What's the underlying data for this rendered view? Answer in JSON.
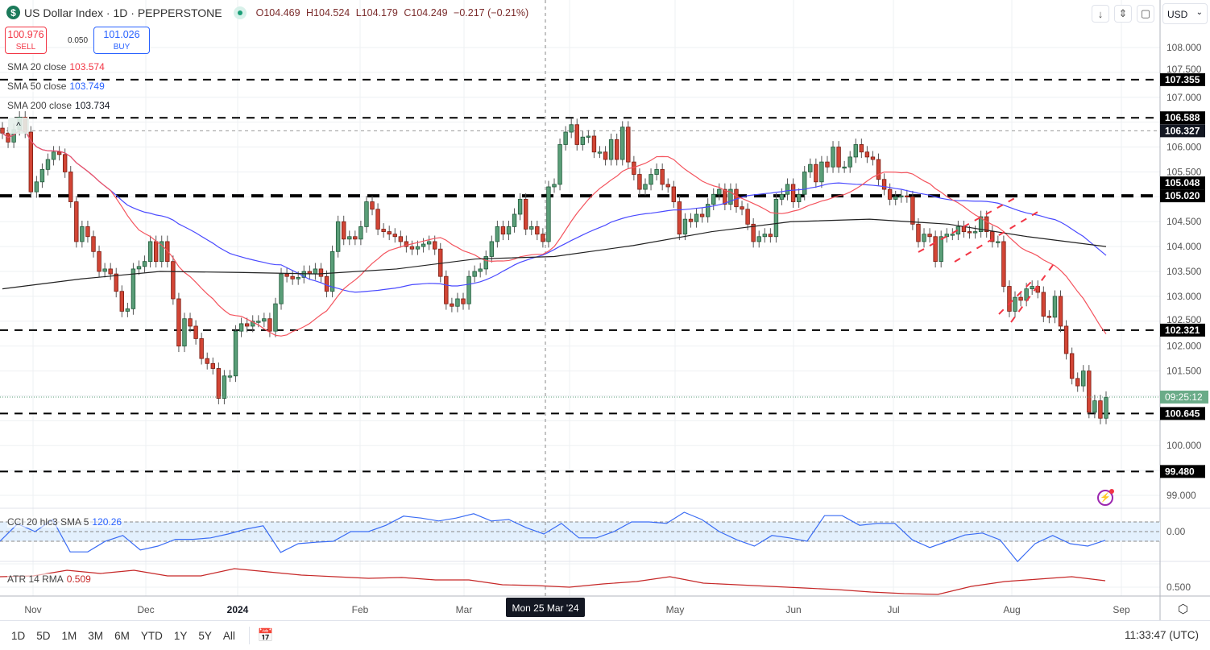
{
  "header": {
    "logo_letter": "$",
    "title": "US Dollar Index · 1D · PEPPERSTONE",
    "open": "O104.469",
    "high": "H104.524",
    "low": "L104.179",
    "close": "C104.249",
    "change": "−0.217 (−0.21%)"
  },
  "quote": {
    "sell_price": "100.976",
    "sell_label": "SELL",
    "spread": "0.050",
    "buy_price": "101.026",
    "buy_label": "BUY"
  },
  "legend": {
    "sma20": {
      "label": "SMA 20 close",
      "value": "103.574",
      "color": "#f23645"
    },
    "sma50": {
      "label": "SMA 50 close",
      "value": "103.749",
      "color": "#2962ff"
    },
    "sma200": {
      "label": "SMA 200 close",
      "value": "103.734",
      "color": "#131722"
    },
    "cci": {
      "label": "CCI 20 hlc3 SMA 5",
      "value": "120.26",
      "color": "#2962ff"
    },
    "atr": {
      "label": "ATR 14 RMA",
      "value": "0.509",
      "color": "#c62828"
    }
  },
  "toolbar": {
    "currency": "USD",
    "icons": [
      "arrow-down-icon",
      "collapse-icon",
      "fullscreen-icon"
    ]
  },
  "bottom": {
    "ranges": [
      "1D",
      "5D",
      "1M",
      "3M",
      "6M",
      "YTD",
      "1Y",
      "5Y",
      "All"
    ],
    "clock": "11:33:47 (UTC)"
  },
  "colors": {
    "up": "#5a9e78",
    "down": "#d24535",
    "sma20": "#f4545e",
    "sma50": "#4a4aff",
    "sma200": "#222222",
    "cci": "#3a6cf4",
    "atr": "#c62828"
  },
  "chart_data": {
    "type": "candlestick",
    "ylim": [
      98.5,
      108.4
    ],
    "price_ticks": [
      "108.000",
      "107.500",
      "107.000",
      "106.000",
      "105.500",
      "104.500",
      "104.000",
      "103.500",
      "103.000",
      "102.500",
      "102.000",
      "101.500",
      "100.000",
      "99.000"
    ],
    "x_ticks": [
      {
        "label": "Nov"
      },
      {
        "label": "Dec"
      },
      {
        "label": "2024"
      },
      {
        "label": "Feb"
      },
      {
        "label": "Mar"
      },
      {
        "label": "May"
      },
      {
        "label": "Jun"
      },
      {
        "label": "Jul"
      },
      {
        "label": "Aug"
      },
      {
        "label": "Sep"
      }
    ],
    "crosshair_date": "Mon 25 Mar '24",
    "countdown": "09:25:12",
    "last_price": 100.976,
    "horizontal_levels": [
      107.355,
      106.588,
      105.048,
      105.02,
      102.321,
      100.645,
      99.48
    ],
    "crosshair_level": 106.327,
    "closes": [
      106.28,
      106.1,
      106.35,
      106.6,
      106.3,
      105.1,
      105.3,
      105.55,
      105.75,
      105.9,
      105.85,
      105.5,
      104.9,
      104.1,
      104.4,
      104.2,
      103.9,
      103.5,
      103.55,
      103.45,
      103.1,
      102.7,
      102.75,
      103.55,
      103.6,
      103.7,
      104.1,
      103.7,
      104.1,
      103.7,
      102.95,
      102.0,
      102.55,
      102.4,
      102.15,
      101.75,
      101.65,
      101.55,
      100.95,
      101.4,
      101.4,
      102.3,
      102.45,
      102.4,
      102.5,
      102.5,
      102.55,
      102.3,
      102.85,
      103.45,
      103.4,
      103.35,
      103.38,
      103.5,
      103.45,
      103.55,
      103.4,
      103.1,
      103.9,
      104.5,
      104.15,
      104.2,
      104.15,
      104.4,
      104.9,
      104.75,
      104.35,
      104.3,
      104.25,
      104.2,
      104.1,
      104.0,
      103.95,
      104.0,
      104.05,
      104.1,
      103.95,
      103.4,
      102.85,
      102.8,
      102.95,
      102.85,
      103.4,
      103.5,
      103.55,
      103.8,
      104.1,
      104.4,
      104.25,
      104.4,
      104.65,
      104.95,
      104.35,
      104.4,
      104.25,
      104.1,
      105.2,
      105.25,
      106.05,
      106.3,
      106.45,
      106.05,
      106.2,
      106.22,
      105.9,
      105.9,
      105.75,
      106.15,
      105.75,
      106.4,
      105.7,
      105.45,
      105.15,
      105.25,
      105.45,
      105.55,
      105.25,
      105.2,
      104.9,
      104.25,
      104.55,
      104.5,
      104.65,
      104.6,
      104.85,
      105.05,
      105.15,
      104.85,
      105.15,
      104.8,
      104.75,
      104.45,
      104.1,
      104.2,
      104.25,
      104.2,
      104.95,
      105.05,
      105.25,
      104.9,
      105.05,
      105.5,
      105.65,
      105.3,
      105.7,
      105.6,
      106.0,
      105.6,
      105.6,
      105.8,
      106.05,
      105.9,
      105.8,
      105.75,
      105.35,
      105.15,
      104.95,
      105.0,
      105.02,
      105.0,
      104.45,
      104.1,
      104.25,
      104.2,
      103.7,
      104.2,
      104.25,
      104.25,
      104.4,
      104.3,
      104.28,
      104.3,
      104.6,
      104.3,
      104.1,
      104.1,
      103.2,
      102.7,
      102.98,
      102.92,
      103.15,
      103.2,
      103.08,
      102.6,
      102.58,
      103.0,
      102.4,
      101.85,
      101.35,
      101.2,
      101.5,
      100.67,
      100.9,
      100.55,
      100.97
    ],
    "sma200": [
      103.15,
      103.35,
      103.5,
      103.48,
      103.45,
      103.55,
      103.75,
      103.8,
      104.02,
      104.3,
      104.5,
      104.55,
      104.45,
      104.2,
      104.0
    ],
    "cci": {
      "ticks": [
        "0.00"
      ],
      "band": [
        100,
        -100
      ],
      "values": [
        -100,
        80,
        0,
        125,
        -210,
        -210,
        -100,
        -40,
        -190,
        -150,
        -80,
        -80,
        -65,
        -25,
        25,
        60,
        -215,
        -125,
        -110,
        -100,
        0,
        0,
        65,
        160,
        140,
        110,
        140,
        185,
        110,
        125,
        40,
        -25,
        85,
        -65,
        -65,
        0,
        100,
        100,
        85,
        200,
        125,
        0,
        -85,
        -150,
        -40,
        -65,
        -100,
        165,
        165,
        65,
        85,
        85,
        -85,
        -165,
        -100,
        -35,
        -15,
        -85,
        -310,
        -125,
        -40,
        -125,
        -150,
        -90
      ]
    },
    "atr": {
      "ticks": [
        "0.500"
      ],
      "values": [
        0.63,
        0.64,
        0.71,
        0.67,
        0.71,
        0.64,
        0.64,
        0.73,
        0.69,
        0.65,
        0.63,
        0.61,
        0.62,
        0.59,
        0.59,
        0.53,
        0.52,
        0.5,
        0.54,
        0.57,
        0.63,
        0.55,
        0.53,
        0.51,
        0.49,
        0.47,
        0.44,
        0.42,
        0.41,
        0.51,
        0.57,
        0.6,
        0.63,
        0.58
      ]
    }
  }
}
